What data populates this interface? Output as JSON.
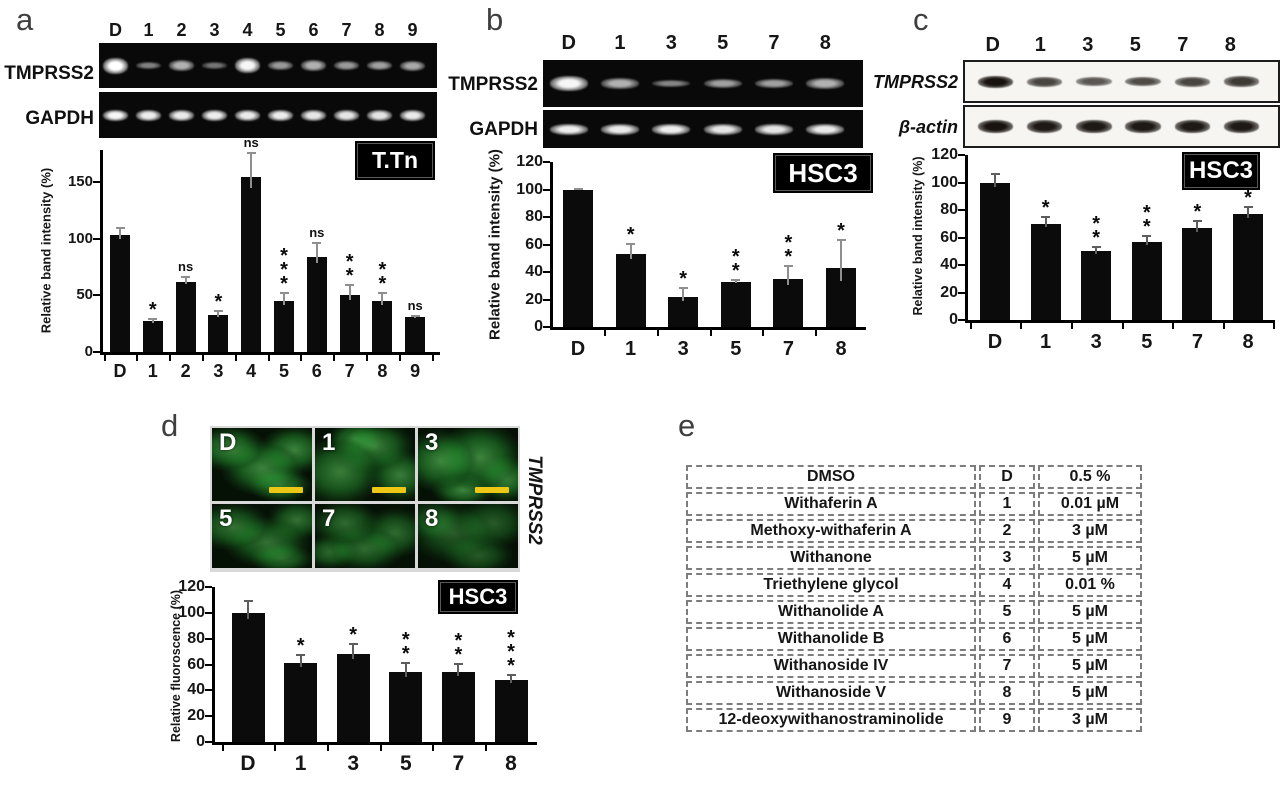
{
  "colors": {
    "bar": "#0b0b0b",
    "badge_bg": "#000000",
    "badge_text": "#ffffff",
    "fluorescence_green": "#3fca4a",
    "scalebar_yellow": "#ecc716",
    "gel_background": "#090909",
    "blot_background": "#f6f5f1"
  },
  "panels": {
    "a": {
      "letter": "a",
      "cell_line_badge": "T.Tn",
      "gel": {
        "lane_labels": [
          "D",
          "1",
          "2",
          "3",
          "4",
          "5",
          "6",
          "7",
          "8",
          "9"
        ],
        "rows": [
          {
            "label": "TMPRSS2",
            "band_intensities": [
              1.0,
              0.28,
              0.55,
              0.2,
              0.95,
              0.42,
              0.55,
              0.42,
              0.45,
              0.5
            ]
          },
          {
            "label": "GAPDH",
            "band_intensities": [
              0.95,
              0.9,
              0.88,
              0.9,
              0.88,
              0.9,
              0.86,
              0.85,
              0.85,
              0.88
            ]
          }
        ]
      }
    },
    "b": {
      "letter": "b",
      "cell_line_badge": "HSC3",
      "gel": {
        "lane_labels": [
          "D",
          "1",
          "3",
          "5",
          "7",
          "8"
        ],
        "rows": [
          {
            "label": "TMPRSS2",
            "band_intensities": [
              0.95,
              0.55,
              0.3,
              0.45,
              0.45,
              0.55
            ]
          },
          {
            "label": "GAPDH",
            "band_intensities": [
              0.9,
              0.88,
              0.9,
              0.85,
              0.85,
              0.88
            ]
          }
        ]
      }
    },
    "c": {
      "letter": "c",
      "cell_line_badge": "HSC3",
      "gel": {
        "lane_labels": [
          "D",
          "1",
          "3",
          "5",
          "7",
          "8"
        ],
        "rows": [
          {
            "label": "TMPRSS2",
            "band_intensities": [
              1.0,
              0.6,
              0.45,
              0.55,
              0.6,
              0.7
            ]
          },
          {
            "label": "β-actin",
            "band_intensities": [
              1.0,
              0.95,
              0.95,
              0.95,
              0.95,
              0.95
            ]
          }
        ]
      }
    },
    "d": {
      "letter": "d",
      "cell_line_badge": "HSC3",
      "images": {
        "side_label": "TMPRSS2",
        "tiles": [
          {
            "label": "D",
            "scalebar": true
          },
          {
            "label": "1",
            "scalebar": true
          },
          {
            "label": "3",
            "scalebar": true
          },
          {
            "label": "5",
            "scalebar": false
          },
          {
            "label": "7",
            "scalebar": false
          },
          {
            "label": "8",
            "scalebar": false
          }
        ]
      }
    },
    "e": {
      "letter": "e",
      "table": {
        "rows": [
          [
            "DMSO",
            "D",
            "0.5 %"
          ],
          [
            "Withaferin A",
            "1",
            "0.01 µM"
          ],
          [
            "Methoxy-withaferin A",
            "2",
            "3 µM"
          ],
          [
            "Withanone",
            "3",
            "5 µM"
          ],
          [
            "Triethylene glycol",
            "4",
            "0.01 %"
          ],
          [
            "Withanolide A",
            "5",
            "5 µM"
          ],
          [
            "Withanolide B",
            "6",
            "5 µM"
          ],
          [
            "Withanoside IV",
            "7",
            "5 µM"
          ],
          [
            "Withanoside V",
            "8",
            "5 µM"
          ],
          [
            "12-deoxywithanostraminolide",
            "9",
            "3 µM"
          ]
        ]
      }
    }
  },
  "chart_data": [
    {
      "panel": "a",
      "type": "bar",
      "title": "T.Tn",
      "categories": [
        "D",
        "1",
        "2",
        "3",
        "4",
        "5",
        "6",
        "7",
        "8",
        "9"
      ],
      "values": [
        103,
        27,
        62,
        33,
        154,
        45,
        84,
        50,
        45,
        31
      ],
      "errors": [
        7,
        3,
        5,
        4,
        22,
        8,
        13,
        10,
        8,
        2
      ],
      "significance": [
        "",
        "*",
        "ns",
        "*",
        "ns",
        "***",
        "ns",
        "**",
        "**",
        "ns"
      ],
      "xlabel": "",
      "ylabel": "Relative band intensity (%)",
      "ylim": [
        0,
        178
      ],
      "yticks": [
        0,
        50,
        100,
        150
      ],
      "grid": false,
      "legend": "none"
    },
    {
      "panel": "b",
      "type": "bar",
      "title": "HSC3",
      "categories": [
        "D",
        "1",
        "3",
        "5",
        "7",
        "8"
      ],
      "values": [
        100,
        53,
        22,
        33,
        35,
        43
      ],
      "errors": [
        1,
        8,
        7,
        2,
        10,
        21
      ],
      "significance": [
        "",
        "*",
        "*",
        "**",
        "**",
        "*"
      ],
      "xlabel": "",
      "ylabel": "Relative band intensity (%)",
      "ylim": [
        0,
        120
      ],
      "yticks": [
        0,
        20,
        40,
        60,
        80,
        100,
        120
      ],
      "grid": false,
      "legend": "none"
    },
    {
      "panel": "c",
      "type": "bar",
      "title": "HSC3",
      "categories": [
        "D",
        "1",
        "3",
        "5",
        "7",
        "8"
      ],
      "values": [
        100,
        70,
        50,
        57,
        67,
        77
      ],
      "errors": [
        7,
        6,
        4,
        5,
        6,
        6
      ],
      "significance": [
        "",
        "*",
        "**",
        "**",
        "*",
        "*"
      ],
      "xlabel": "",
      "ylabel": "Relative band intensity (%)",
      "ylim": [
        0,
        120
      ],
      "yticks": [
        0,
        20,
        40,
        60,
        80,
        100,
        120
      ],
      "grid": false,
      "legend": "none"
    },
    {
      "panel": "d",
      "type": "bar",
      "title": "HSC3",
      "categories": [
        "D",
        "1",
        "3",
        "5",
        "7",
        "8"
      ],
      "values": [
        100,
        61,
        68,
        54,
        54,
        48
      ],
      "errors": [
        10,
        7,
        9,
        8,
        7,
        5
      ],
      "significance": [
        "",
        "*",
        "*",
        "**",
        "**",
        "***"
      ],
      "xlabel": "",
      "ylabel": "Relative fluoroscence (%)",
      "ylim": [
        0,
        120
      ],
      "yticks": [
        0,
        20,
        40,
        60,
        80,
        100,
        120
      ],
      "grid": false,
      "legend": "none"
    }
  ]
}
